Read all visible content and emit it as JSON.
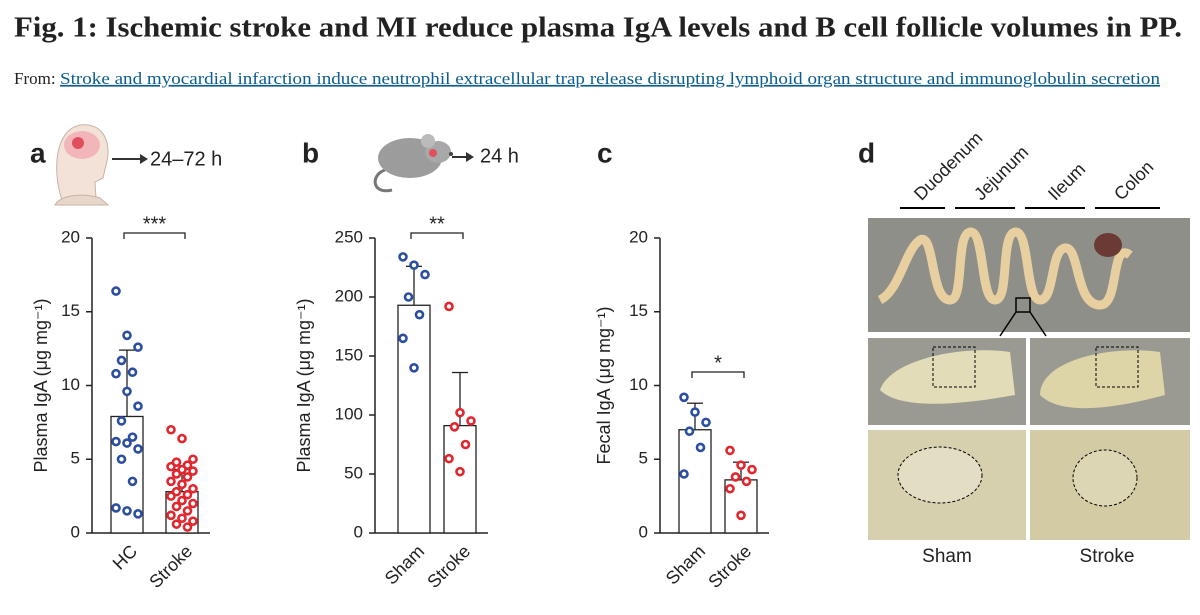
{
  "header": {
    "title": "Fig. 1: Ischemic stroke and MI reduce plasma IgA levels and B cell follicle volumes in PP.",
    "from_label": "From:",
    "link": "Stroke and myocardial infarction induce neutrophil extracellular trap release disrupting lymphoid organ structure and immunoglobulin secretion"
  },
  "chart_data": [
    {
      "type": "bar",
      "panel": "a",
      "annotation": "24–72 h",
      "ylabel": "Plasma IgA (μg mg⁻¹)",
      "categories": [
        "HC",
        "Stroke"
      ],
      "values": [
        7.9,
        2.8
      ],
      "errors": [
        4.5,
        1.5
      ],
      "points": [
        [
          16.4,
          13.4,
          12.6,
          11.7,
          10.9,
          10.8,
          9.6,
          8.6,
          7.6,
          6.5,
          6.2,
          6.1,
          5.7,
          5.0,
          3.5,
          1.7,
          1.5,
          1.3
        ],
        [
          7.0,
          6.4,
          5.0,
          4.8,
          4.6,
          4.5,
          4.3,
          4.2,
          4.0,
          3.8,
          3.5,
          3.3,
          3.0,
          2.8,
          2.6,
          2.5,
          2.2,
          2.0,
          1.8,
          1.5,
          1.2,
          1.0,
          0.8,
          0.6,
          0.4
        ]
      ],
      "colors": [
        "#2b4f9e",
        "#e1262d"
      ],
      "significance": "***",
      "ylim": [
        0,
        20
      ],
      "yticks": [
        0,
        5,
        10,
        15,
        20
      ]
    },
    {
      "type": "bar",
      "panel": "b",
      "annotation": "24 h",
      "ylabel": "Plasma IgA (μg mg⁻¹)",
      "categories": [
        "Sham",
        "Stroke"
      ],
      "values": [
        193,
        91
      ],
      "errors": [
        33,
        45
      ],
      "points": [
        [
          234,
          227,
          219,
          200,
          185,
          165,
          140
        ],
        [
          192,
          102,
          95,
          90,
          75,
          63,
          52
        ]
      ],
      "colors": [
        "#2b4f9e",
        "#e1262d"
      ],
      "significance": "**",
      "ylim": [
        0,
        250
      ],
      "yticks": [
        0,
        50,
        100,
        150,
        200,
        250
      ]
    },
    {
      "type": "bar",
      "panel": "c",
      "ylabel": "Fecal IgA (μg mg⁻¹)",
      "categories": [
        "Sham",
        "Stroke"
      ],
      "values": [
        7.0,
        3.6
      ],
      "errors": [
        1.8,
        1.2
      ],
      "points": [
        [
          9.2,
          8.2,
          7.5,
          6.9,
          5.8,
          4.0
        ],
        [
          5.6,
          4.6,
          4.3,
          3.8,
          3.5,
          3.0,
          1.2
        ]
      ],
      "colors": [
        "#2b4f9e",
        "#e1262d"
      ],
      "significance": "*",
      "ylim": [
        0,
        20
      ],
      "yticks": [
        0,
        5,
        10,
        15,
        20
      ]
    }
  ],
  "panel_d": {
    "panel": "d",
    "segments": [
      "Duodenum",
      "Jejunum",
      "Ileum",
      "Colon"
    ],
    "conditions": [
      "Sham",
      "Stroke"
    ]
  }
}
